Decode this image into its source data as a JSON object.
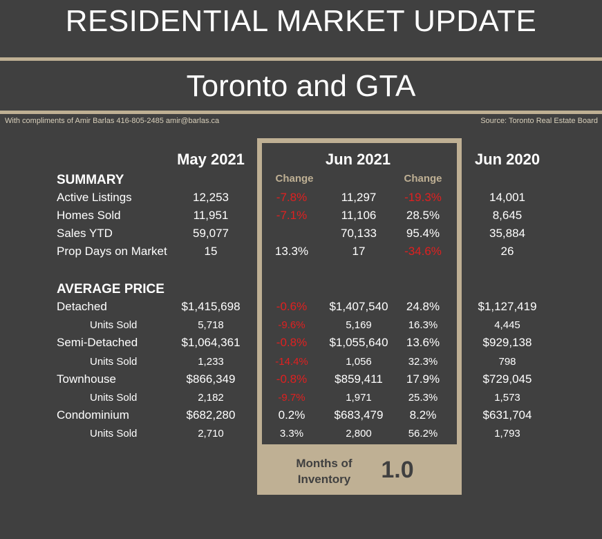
{
  "header": {
    "title": "RESIDENTIAL MARKET UPDATE",
    "subtitle": "Toronto and GTA",
    "compliments": "With compliments of Amir Barlas 416-805-2485 amir@barlas.ca",
    "source": "Source: Toronto Real Estate Board"
  },
  "columns": {
    "may2021": "May 2021",
    "jun2021": "Jun 2021",
    "jun2020": "Jun 2020",
    "change1": "Change",
    "change2": "Change"
  },
  "sections": {
    "summary": "SUMMARY",
    "average_price": "AVERAGE PRICE"
  },
  "summary_rows": [
    {
      "label": "Active Listings",
      "may": "12,253",
      "chg1": "-7.8%",
      "chg1_neg": true,
      "jun": "11,297",
      "chg2": "-19.3%",
      "chg2_neg": true,
      "jun20": "14,001"
    },
    {
      "label": "Homes Sold",
      "may": "11,951",
      "chg1": "-7.1%",
      "chg1_neg": true,
      "jun": "11,106",
      "chg2": "28.5%",
      "chg2_neg": false,
      "jun20": "8,645"
    },
    {
      "label": "Sales YTD",
      "may": "59,077",
      "chg1": "",
      "chg1_neg": false,
      "jun": "70,133",
      "chg2": "95.4%",
      "chg2_neg": false,
      "jun20": "35,884"
    },
    {
      "label": "Prop Days on Market",
      "may": "15",
      "chg1": "13.3%",
      "chg1_neg": false,
      "jun": "17",
      "chg2": "-34.6%",
      "chg2_neg": true,
      "jun20": "26"
    }
  ],
  "price_rows": [
    {
      "label": "Detached",
      "sub": false,
      "may": "$1,415,698",
      "chg1": "-0.6%",
      "chg1_neg": true,
      "jun": "$1,407,540",
      "chg2": "24.8%",
      "chg2_neg": false,
      "jun20": "$1,127,419"
    },
    {
      "label": "Units Sold",
      "sub": true,
      "may": "5,718",
      "chg1": "-9.6%",
      "chg1_neg": true,
      "jun": "5,169",
      "chg2": "16.3%",
      "chg2_neg": false,
      "jun20": "4,445"
    },
    {
      "label": "Semi-Detached",
      "sub": false,
      "may": "$1,064,361",
      "chg1": "-0.8%",
      "chg1_neg": true,
      "jun": "$1,055,640",
      "chg2": "13.6%",
      "chg2_neg": false,
      "jun20": "$929,138"
    },
    {
      "label": "Units Sold",
      "sub": true,
      "may": "1,233",
      "chg1": "-14.4%",
      "chg1_neg": true,
      "jun": "1,056",
      "chg2": "32.3%",
      "chg2_neg": false,
      "jun20": "798"
    },
    {
      "label": "Townhouse",
      "sub": false,
      "may": "$866,349",
      "chg1": "-0.8%",
      "chg1_neg": true,
      "jun": "$859,411",
      "chg2": "17.9%",
      "chg2_neg": false,
      "jun20": "$729,045"
    },
    {
      "label": "Units Sold",
      "sub": true,
      "may": "2,182",
      "chg1": "-9.7%",
      "chg1_neg": true,
      "jun": "1,971",
      "chg2": "25.3%",
      "chg2_neg": false,
      "jun20": "1,573"
    },
    {
      "label": "Condominium",
      "sub": false,
      "may": "$682,280",
      "chg1": "0.2%",
      "chg1_neg": false,
      "jun": "$683,479",
      "chg2": "8.2%",
      "chg2_neg": false,
      "jun20": "$631,704"
    },
    {
      "label": "Units Sold",
      "sub": true,
      "may": "2,710",
      "chg1": "3.3%",
      "chg1_neg": false,
      "jun": "2,800",
      "chg2": "56.2%",
      "chg2_neg": false,
      "jun20": "1,793"
    }
  ],
  "inventory": {
    "label": "Months of Inventory",
    "value": "1.0"
  },
  "colors": {
    "background": "#404040",
    "accent": "#bfb094",
    "negative": "#e02020",
    "text": "#ffffff"
  }
}
